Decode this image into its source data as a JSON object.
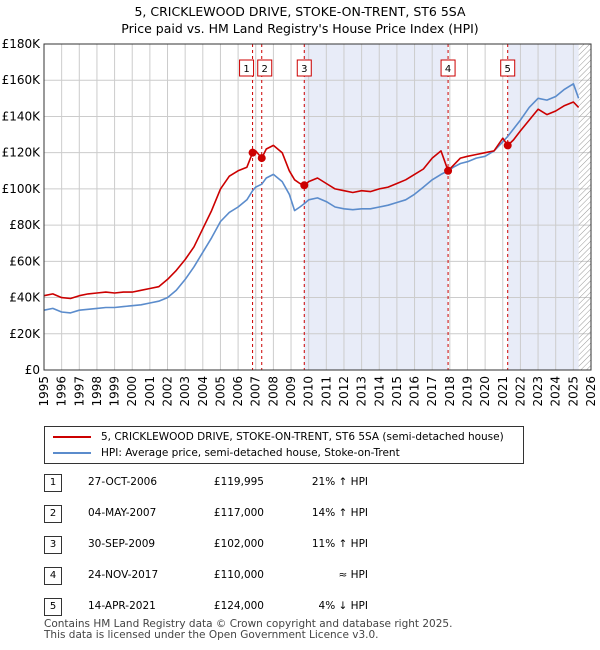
{
  "title_line1": "5, CRICKLEWOOD DRIVE, STOKE-ON-TRENT, ST6 5SA",
  "title_line2": "Price paid vs. HM Land Registry's House Price Index (HPI)",
  "chart_data": {
    "type": "line",
    "xlim": [
      1995,
      2026
    ],
    "ylim": [
      0,
      180000
    ],
    "x_ticks": [
      "1995",
      "1996",
      "1997",
      "1998",
      "1999",
      "2000",
      "2001",
      "2002",
      "2003",
      "2004",
      "2005",
      "2006",
      "2007",
      "2008",
      "2009",
      "2010",
      "2011",
      "2012",
      "2013",
      "2014",
      "2015",
      "2016",
      "2017",
      "2018",
      "2019",
      "2020",
      "2021",
      "2022",
      "2023",
      "2024",
      "2025",
      "2026"
    ],
    "y_ticks": [
      {
        "value": 0,
        "label": "£0"
      },
      {
        "value": 20000,
        "label": "£20K"
      },
      {
        "value": 40000,
        "label": "£40K"
      },
      {
        "value": 60000,
        "label": "£60K"
      },
      {
        "value": 80000,
        "label": "£80K"
      },
      {
        "value": 100000,
        "label": "£100K"
      },
      {
        "value": 120000,
        "label": "£120K"
      },
      {
        "value": 140000,
        "label": "£140K"
      },
      {
        "value": 160000,
        "label": "£160K"
      },
      {
        "value": 180000,
        "label": "£180K"
      }
    ],
    "grid": true,
    "series": [
      {
        "name": "5, CRICKLEWOOD DRIVE, STOKE-ON-TRENT, ST6 5SA (semi-detached house)",
        "color": "#cc0000",
        "points": [
          [
            1995.0,
            41000
          ],
          [
            1995.5,
            42000
          ],
          [
            1996.0,
            40000
          ],
          [
            1996.5,
            39500
          ],
          [
            1997.0,
            41000
          ],
          [
            1997.5,
            42000
          ],
          [
            1998.0,
            42500
          ],
          [
            1998.5,
            43000
          ],
          [
            1999.0,
            42500
          ],
          [
            1999.5,
            43000
          ],
          [
            2000.0,
            43000
          ],
          [
            2000.5,
            44000
          ],
          [
            2001.0,
            45000
          ],
          [
            2001.5,
            46000
          ],
          [
            2002.0,
            50000
          ],
          [
            2002.5,
            55000
          ],
          [
            2003.0,
            61000
          ],
          [
            2003.5,
            68000
          ],
          [
            2004.0,
            78000
          ],
          [
            2004.5,
            88000
          ],
          [
            2005.0,
            100000
          ],
          [
            2005.5,
            107000
          ],
          [
            2006.0,
            110000
          ],
          [
            2006.5,
            112000
          ],
          [
            2006.82,
            119995
          ],
          [
            2007.0,
            121000
          ],
          [
            2007.34,
            117000
          ],
          [
            2007.6,
            122000
          ],
          [
            2008.0,
            124000
          ],
          [
            2008.5,
            120000
          ],
          [
            2008.9,
            110000
          ],
          [
            2009.2,
            105000
          ],
          [
            2009.5,
            103000
          ],
          [
            2009.75,
            102000
          ],
          [
            2010.0,
            104000
          ],
          [
            2010.5,
            106000
          ],
          [
            2011.0,
            103000
          ],
          [
            2011.5,
            100000
          ],
          [
            2012.0,
            99000
          ],
          [
            2012.5,
            98000
          ],
          [
            2013.0,
            99000
          ],
          [
            2013.5,
            98500
          ],
          [
            2014.0,
            100000
          ],
          [
            2014.5,
            101000
          ],
          [
            2015.0,
            103000
          ],
          [
            2015.5,
            105000
          ],
          [
            2016.0,
            108000
          ],
          [
            2016.5,
            111000
          ],
          [
            2017.0,
            117000
          ],
          [
            2017.5,
            121000
          ],
          [
            2017.9,
            110000
          ],
          [
            2018.2,
            113000
          ],
          [
            2018.6,
            117000
          ],
          [
            2019.0,
            118000
          ],
          [
            2019.5,
            119000
          ],
          [
            2020.0,
            120000
          ],
          [
            2020.5,
            121000
          ],
          [
            2021.0,
            128000
          ],
          [
            2021.28,
            124000
          ],
          [
            2021.6,
            127000
          ],
          [
            2022.0,
            132000
          ],
          [
            2022.5,
            138000
          ],
          [
            2023.0,
            144000
          ],
          [
            2023.5,
            141000
          ],
          [
            2024.0,
            143000
          ],
          [
            2024.5,
            146000
          ],
          [
            2025.0,
            148000
          ],
          [
            2025.3,
            145000
          ]
        ]
      },
      {
        "name": "HPI: Average price, semi-detached house, Stoke-on-Trent",
        "color": "#5b8ccc",
        "points": [
          [
            1995.0,
            33000
          ],
          [
            1995.5,
            34000
          ],
          [
            1996.0,
            32000
          ],
          [
            1996.5,
            31500
          ],
          [
            1997.0,
            33000
          ],
          [
            1997.5,
            33500
          ],
          [
            1998.0,
            34000
          ],
          [
            1998.5,
            34500
          ],
          [
            1999.0,
            34500
          ],
          [
            1999.5,
            35000
          ],
          [
            2000.0,
            35500
          ],
          [
            2000.5,
            36000
          ],
          [
            2001.0,
            37000
          ],
          [
            2001.5,
            38000
          ],
          [
            2002.0,
            40000
          ],
          [
            2002.5,
            44000
          ],
          [
            2003.0,
            50000
          ],
          [
            2003.5,
            57000
          ],
          [
            2004.0,
            65000
          ],
          [
            2004.5,
            73000
          ],
          [
            2005.0,
            82000
          ],
          [
            2005.5,
            87000
          ],
          [
            2006.0,
            90000
          ],
          [
            2006.5,
            94000
          ],
          [
            2006.82,
            99000
          ],
          [
            2007.0,
            101000
          ],
          [
            2007.34,
            102600
          ],
          [
            2007.6,
            106000
          ],
          [
            2008.0,
            108000
          ],
          [
            2008.5,
            104000
          ],
          [
            2008.9,
            97000
          ],
          [
            2009.2,
            88000
          ],
          [
            2009.5,
            90000
          ],
          [
            2009.75,
            91900
          ],
          [
            2010.0,
            94000
          ],
          [
            2010.5,
            95000
          ],
          [
            2011.0,
            93000
          ],
          [
            2011.5,
            90000
          ],
          [
            2012.0,
            89000
          ],
          [
            2012.5,
            88500
          ],
          [
            2013.0,
            89000
          ],
          [
            2013.5,
            89000
          ],
          [
            2014.0,
            90000
          ],
          [
            2014.5,
            91000
          ],
          [
            2015.0,
            92500
          ],
          [
            2015.5,
            94000
          ],
          [
            2016.0,
            97000
          ],
          [
            2016.5,
            101000
          ],
          [
            2017.0,
            105000
          ],
          [
            2017.5,
            108000
          ],
          [
            2017.9,
            110000
          ],
          [
            2018.2,
            112000
          ],
          [
            2018.6,
            114000
          ],
          [
            2019.0,
            115000
          ],
          [
            2019.5,
            117000
          ],
          [
            2020.0,
            118000
          ],
          [
            2020.5,
            121000
          ],
          [
            2021.0,
            126000
          ],
          [
            2021.28,
            129000
          ],
          [
            2021.6,
            133000
          ],
          [
            2022.0,
            138000
          ],
          [
            2022.5,
            145000
          ],
          [
            2023.0,
            150000
          ],
          [
            2023.5,
            149000
          ],
          [
            2024.0,
            151000
          ],
          [
            2024.5,
            155000
          ],
          [
            2025.0,
            158000
          ],
          [
            2025.3,
            150000
          ]
        ]
      }
    ],
    "sales": [
      {
        "label": "1",
        "x": 2006.82,
        "value": 119995
      },
      {
        "label": "2",
        "x": 2007.34,
        "value": 117000
      },
      {
        "label": "3",
        "x": 2009.75,
        "value": 102000
      },
      {
        "label": "4",
        "x": 2017.9,
        "value": 110000
      },
      {
        "label": "5",
        "x": 2021.28,
        "value": 124000
      }
    ],
    "shaded_ranges": [
      [
        2009.75,
        2017.9
      ],
      [
        2021.28,
        2025.3
      ]
    ],
    "forecast_from": 2025.3
  },
  "legend": {
    "property": "5, CRICKLEWOOD DRIVE, STOKE-ON-TRENT, ST6 5SA (semi-detached house)",
    "hpi": "HPI: Average price, semi-detached house, Stoke-on-Trent"
  },
  "transactions": [
    {
      "num": "1",
      "date": "27-OCT-2006",
      "price": "£119,995",
      "hpi": "21% ↑ HPI"
    },
    {
      "num": "2",
      "date": "04-MAY-2007",
      "price": "£117,000",
      "hpi": "14% ↑ HPI"
    },
    {
      "num": "3",
      "date": "30-SEP-2009",
      "price": "£102,000",
      "hpi": "11% ↑ HPI"
    },
    {
      "num": "4",
      "date": "24-NOV-2017",
      "price": "£110,000",
      "hpi": "≈ HPI"
    },
    {
      "num": "5",
      "date": "14-APR-2021",
      "price": "£124,000",
      "hpi": "4% ↓ HPI"
    }
  ],
  "footer_line1": "Contains HM Land Registry data © Crown copyright and database right 2025.",
  "footer_line2": "This data is licensed under the Open Government Licence v3.0.",
  "colors": {
    "property": "#cc0000",
    "hpi": "#5b8ccc",
    "shade": "#e8ecf8",
    "grid": "#cccccc"
  }
}
